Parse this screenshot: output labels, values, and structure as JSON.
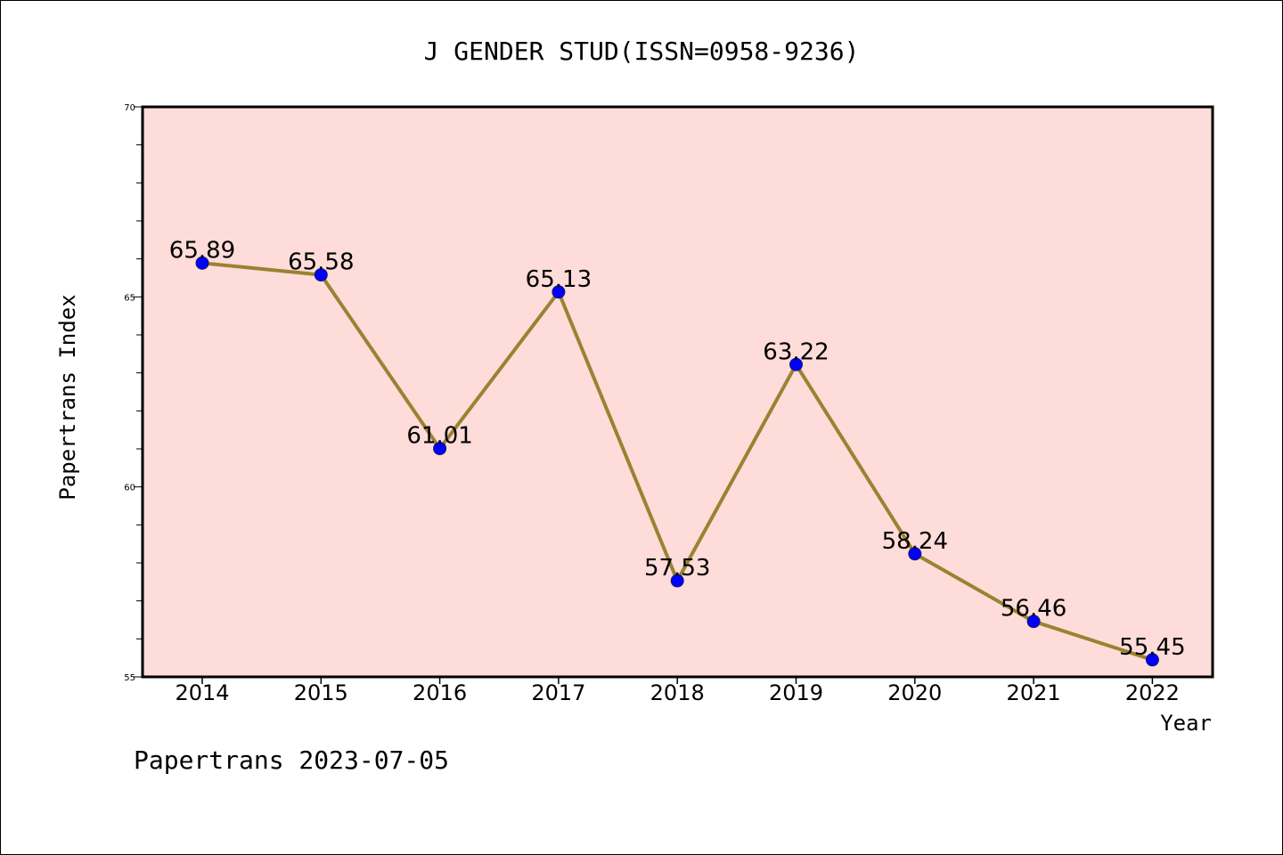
{
  "chart_data": {
    "type": "line",
    "title": "J GENDER STUD(ISSN=0958-9236)",
    "xlabel": "Year",
    "ylabel": "Papertrans Index",
    "categories": [
      "2014",
      "2015",
      "2016",
      "2017",
      "2018",
      "2019",
      "2020",
      "2021",
      "2022"
    ],
    "series": [
      {
        "values": [
          65.89,
          65.58,
          61.01,
          65.13,
          57.53,
          63.22,
          58.24,
          56.46,
          55.45
        ],
        "labels": [
          "65.89",
          "65.58",
          "61.01",
          "65.13",
          "57.53",
          "63.22",
          "58.24",
          "56.46",
          "55.45"
        ]
      }
    ],
    "ylim": [
      55,
      70
    ],
    "yticks": [
      "55",
      "60",
      "65",
      "70"
    ],
    "grid": false,
    "colors": {
      "plot_background": "#fddcd9",
      "line": "#9a8232",
      "marker": "#0000ff",
      "marker_edge": "#1a1a6a"
    }
  },
  "footer": {
    "text": "Papertrans 2023-07-05"
  }
}
